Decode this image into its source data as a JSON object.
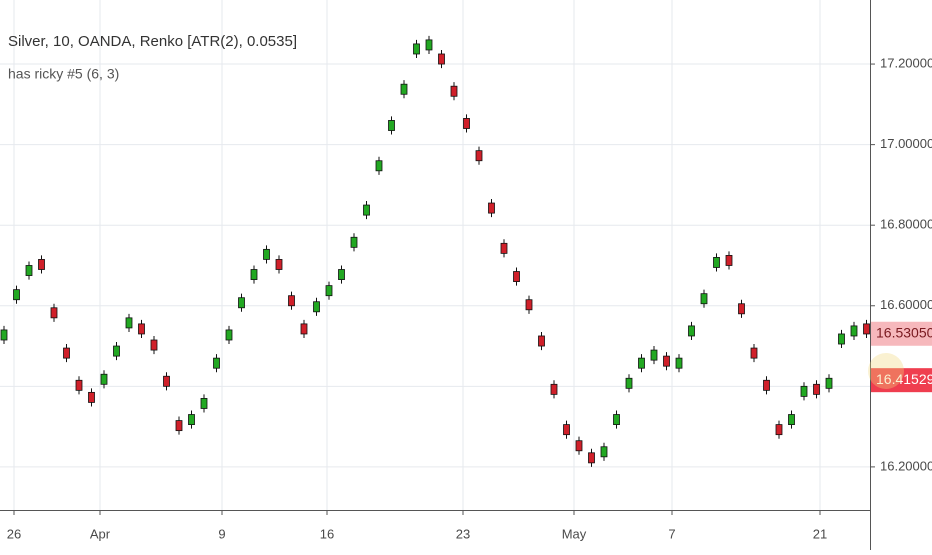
{
  "chart_data": {
    "type": "candlestick",
    "title": "Silver, 10, OANDA, Renko [ATR(2), 0.0535]",
    "subtitle": "has ricky #5 (6, 3)",
    "up_color": "#22a822",
    "down_color": "#d0202a",
    "grid": true,
    "xlim": [
      -0.32,
      69.28
    ],
    "ylim": [
      16.093,
      17.359
    ],
    "xticks": [
      {
        "value": 0.8,
        "label": "26"
      },
      {
        "value": 7.68,
        "label": "Apr"
      },
      {
        "value": 17.44,
        "label": "9"
      },
      {
        "value": 25.84,
        "label": "16"
      },
      {
        "value": 36.72,
        "label": "23"
      },
      {
        "value": 45.6,
        "label": "May"
      },
      {
        "value": 53.44,
        "label": "7"
      },
      {
        "value": 65.28,
        "label": "21"
      }
    ],
    "yticks": [
      {
        "value": 16.2,
        "label": "16.20000"
      },
      16.4,
      {
        "value": 16.6,
        "label": "16.60000"
      },
      {
        "value": 16.8,
        "label": "16.80000"
      },
      {
        "value": 17.0,
        "label": "17.00000"
      },
      {
        "value": 17.2,
        "label": "17.20000"
      }
    ],
    "price_labels": [
      {
        "value": 16.5305,
        "label": "16.53050",
        "color": "#f6b8bc",
        "text_color": "#7a1a20"
      },
      {
        "value": 16.41529,
        "label": "16.41529",
        "color": "#ef3e4f",
        "text_color": "#ffffff"
      }
    ],
    "x": [
      0,
      1,
      2,
      3,
      4,
      5,
      6,
      7,
      8,
      9,
      10,
      11,
      12,
      13,
      14,
      15,
      16,
      17,
      18,
      19,
      20,
      21,
      22,
      23,
      24,
      25,
      26,
      27,
      28,
      29,
      30,
      31,
      32,
      33,
      34,
      35,
      36,
      37,
      38,
      39,
      40,
      41,
      42,
      43,
      44,
      45,
      46,
      47,
      48,
      49,
      50,
      51,
      52,
      53,
      54,
      55,
      56,
      57,
      58,
      59,
      60,
      61,
      62,
      63,
      64,
      65,
      66,
      67,
      68,
      69
    ],
    "open": [
      16.515,
      16.615,
      16.675,
      16.715,
      16.595,
      16.495,
      16.415,
      16.385,
      16.405,
      16.475,
      16.545,
      16.555,
      16.515,
      16.425,
      16.315,
      16.305,
      16.345,
      16.445,
      16.515,
      16.595,
      16.665,
      16.715,
      16.715,
      16.625,
      16.555,
      16.585,
      16.625,
      16.665,
      16.745,
      16.825,
      16.935,
      17.035,
      17.125,
      17.225,
      17.235,
      17.225,
      17.145,
      17.065,
      16.985,
      16.855,
      16.755,
      16.685,
      16.615,
      16.525,
      16.405,
      16.305,
      16.265,
      16.235,
      16.225,
      16.305,
      16.395,
      16.445,
      16.465,
      16.475,
      16.445,
      16.525,
      16.605,
      16.695,
      16.725,
      16.605,
      16.495,
      16.415,
      16.305,
      16.305,
      16.375,
      16.405,
      16.395,
      16.505,
      16.525,
      16.555
    ],
    "high": [
      16.55,
      16.65,
      16.71,
      16.725,
      16.605,
      16.505,
      16.425,
      16.395,
      16.44,
      16.51,
      16.58,
      16.565,
      16.525,
      16.435,
      16.325,
      16.34,
      16.38,
      16.48,
      16.55,
      16.63,
      16.7,
      16.75,
      16.725,
      16.635,
      16.565,
      16.62,
      16.66,
      16.7,
      16.78,
      16.86,
      16.97,
      17.07,
      17.16,
      17.26,
      17.27,
      17.235,
      17.155,
      17.075,
      16.995,
      16.865,
      16.765,
      16.695,
      16.625,
      16.535,
      16.415,
      16.315,
      16.275,
      16.245,
      16.26,
      16.34,
      16.43,
      16.48,
      16.5,
      16.485,
      16.48,
      16.56,
      16.64,
      16.73,
      16.735,
      16.615,
      16.505,
      16.425,
      16.315,
      16.34,
      16.41,
      16.415,
      16.43,
      16.54,
      16.56,
      16.565
    ],
    "low": [
      16.505,
      16.605,
      16.665,
      16.68,
      16.56,
      16.46,
      16.38,
      16.35,
      16.395,
      16.465,
      16.535,
      16.52,
      16.48,
      16.39,
      16.28,
      16.295,
      16.335,
      16.435,
      16.505,
      16.585,
      16.655,
      16.705,
      16.68,
      16.59,
      16.52,
      16.575,
      16.615,
      16.655,
      16.735,
      16.815,
      16.925,
      17.025,
      17.115,
      17.215,
      17.225,
      17.19,
      17.11,
      17.03,
      16.95,
      16.82,
      16.72,
      16.65,
      16.58,
      16.49,
      16.37,
      16.27,
      16.23,
      16.2,
      16.215,
      16.295,
      16.385,
      16.435,
      16.455,
      16.44,
      16.435,
      16.515,
      16.595,
      16.685,
      16.69,
      16.57,
      16.46,
      16.38,
      16.27,
      16.295,
      16.365,
      16.37,
      16.385,
      16.495,
      16.515,
      16.52
    ],
    "close": [
      16.54,
      16.64,
      16.7,
      16.69,
      16.57,
      16.47,
      16.39,
      16.36,
      16.43,
      16.5,
      16.57,
      16.53,
      16.49,
      16.4,
      16.29,
      16.33,
      16.37,
      16.47,
      16.54,
      16.62,
      16.69,
      16.74,
      16.69,
      16.6,
      16.53,
      16.61,
      16.65,
      16.69,
      16.77,
      16.85,
      16.96,
      17.06,
      17.15,
      17.25,
      17.26,
      17.2,
      17.12,
      17.04,
      16.96,
      16.83,
      16.73,
      16.66,
      16.59,
      16.5,
      16.38,
      16.28,
      16.24,
      16.21,
      16.25,
      16.33,
      16.42,
      16.47,
      16.49,
      16.45,
      16.47,
      16.55,
      16.63,
      16.72,
      16.7,
      16.58,
      16.47,
      16.39,
      16.28,
      16.33,
      16.4,
      16.38,
      16.42,
      16.53,
      16.55,
      16.53
    ]
  }
}
